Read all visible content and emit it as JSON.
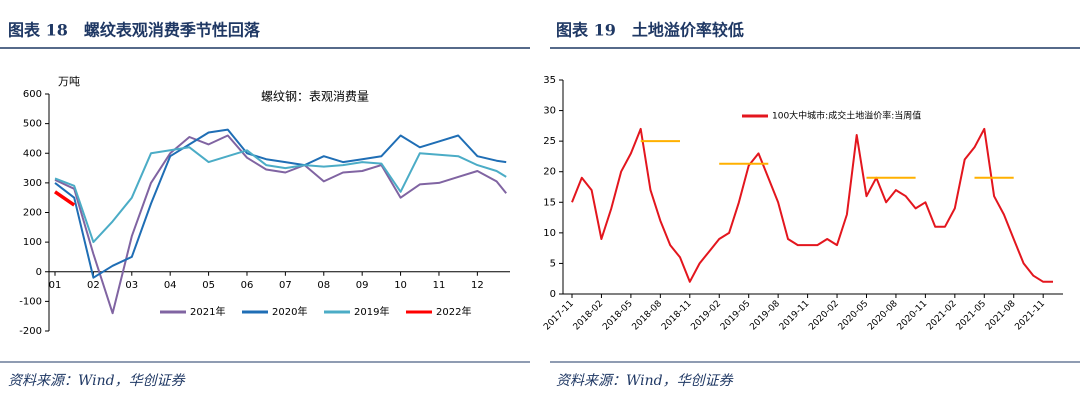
{
  "chart_data": [
    {
      "type": "line",
      "title": "图表 18　螺纹表观消费季节性回落",
      "source": "资料来源：Wind，华创证券",
      "y_label": "万吨",
      "annotation": "螺纹钢：表观消费量",
      "x": [
        1,
        1.5,
        2,
        2.5,
        3,
        3.5,
        4,
        4.5,
        5,
        5.5,
        6,
        6.5,
        7,
        7.5,
        8,
        8.5,
        9,
        9.5,
        10,
        10.5,
        11,
        11.5,
        12,
        12.5,
        12.75
      ],
      "xlim": [
        1,
        12.85
      ],
      "xticks": [
        {
          "value": 1,
          "label": "01"
        },
        {
          "value": 2,
          "label": "02"
        },
        {
          "value": 3,
          "label": "03"
        },
        {
          "value": 4,
          "label": "04"
        },
        {
          "value": 5,
          "label": "05"
        },
        {
          "value": 6,
          "label": "06"
        },
        {
          "value": 7,
          "label": "07"
        },
        {
          "value": 8,
          "label": "08"
        },
        {
          "value": 9,
          "label": "09"
        },
        {
          "value": 10,
          "label": "10"
        },
        {
          "value": 11,
          "label": "11"
        },
        {
          "value": 12,
          "label": "12"
        }
      ],
      "ylim": [
        -200,
        600
      ],
      "yticks": [
        -200,
        -100,
        0,
        100,
        200,
        300,
        400,
        500,
        600
      ],
      "legend": "bottom",
      "series": [
        {
          "name": "2021年",
          "color": "#8064a2",
          "values": [
            310,
            280,
            60,
            -140,
            120,
            300,
            400,
            455,
            430,
            460,
            385,
            345,
            335,
            360,
            305,
            335,
            340,
            360,
            250,
            295,
            300,
            320,
            340,
            305,
            265
          ]
        },
        {
          "name": "2020年",
          "color": "#1f6eb5",
          "values": [
            300,
            250,
            -20,
            20,
            50,
            230,
            390,
            430,
            470,
            480,
            400,
            380,
            370,
            360,
            390,
            370,
            380,
            390,
            460,
            420,
            440,
            460,
            390,
            375,
            370
          ]
        },
        {
          "name": "2019年",
          "color": "#4bacc6",
          "values": [
            315,
            290,
            100,
            170,
            250,
            400,
            410,
            420,
            370,
            390,
            410,
            360,
            350,
            360,
            355,
            360,
            370,
            365,
            270,
            400,
            395,
            390,
            360,
            340,
            320
          ]
        },
        {
          "name": "2022年",
          "color": "#ff0000",
          "values": [
            270,
            225,
            null,
            null,
            null,
            null,
            null,
            null,
            null,
            null,
            null,
            null,
            null,
            null,
            null,
            null,
            null,
            null,
            null,
            null,
            null,
            null,
            null,
            null,
            null
          ]
        }
      ]
    },
    {
      "type": "line",
      "title": "图表 19　土地溢价率较低",
      "source": "资料来源：Wind，华创证券",
      "categories": [
        "2017-11",
        null,
        null,
        "2018-02",
        null,
        null,
        "2018-05",
        null,
        null,
        "2018-08",
        null,
        null,
        "2018-11",
        null,
        null,
        "2019-02",
        null,
        null,
        "2019-05",
        null,
        null,
        "2019-08",
        null,
        null,
        "2019-11",
        null,
        null,
        "2020-02",
        null,
        null,
        "2020-05",
        null,
        null,
        "2020-08",
        null,
        null,
        "2020-11",
        null,
        null,
        "2021-02",
        null,
        null,
        "2021-05",
        null,
        null,
        "2021-08",
        null,
        null,
        "2021-11",
        null
      ],
      "ylim": [
        0,
        35
      ],
      "yticks": [
        0,
        5,
        10,
        15,
        20,
        25,
        30,
        35
      ],
      "legend": "top",
      "series": [
        {
          "name": "100大中城市:成交土地溢价率:当周值",
          "color": "#e3161e",
          "values": [
            15,
            19,
            17,
            9,
            14,
            20,
            23,
            27,
            17,
            12,
            8,
            6,
            2,
            5,
            7,
            9,
            10,
            15,
            21,
            23,
            19,
            15,
            9,
            8,
            8,
            8,
            9,
            8,
            13,
            26,
            16,
            19,
            15,
            17,
            16,
            14,
            15,
            11,
            11,
            14,
            22,
            24,
            27,
            16,
            13,
            9,
            5,
            3,
            2,
            2
          ]
        },
        {
          "color": "#ffb000",
          "values": [
            null,
            null,
            null,
            null,
            null,
            null,
            null,
            25,
            25,
            25,
            25,
            25,
            null,
            null,
            null,
            21.3,
            21.3,
            21.3,
            21.3,
            21.3,
            21.3,
            null,
            null,
            null,
            null,
            null,
            null,
            null,
            null,
            null,
            19,
            19,
            19,
            19,
            19,
            19,
            null,
            null,
            null,
            null,
            null,
            19,
            19,
            19,
            19,
            19,
            null,
            null,
            null,
            null
          ]
        }
      ]
    }
  ]
}
